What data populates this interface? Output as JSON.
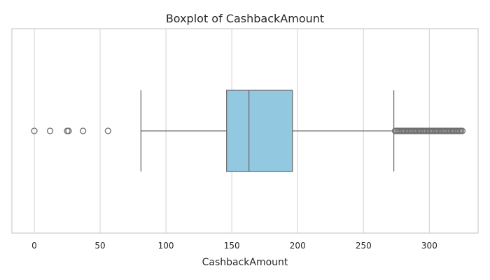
{
  "chart_data": {
    "type": "boxplot",
    "title": "Boxplot of CashbackAmount",
    "xlabel": "CashbackAmount",
    "ylabel": "",
    "xlim": [
      -17,
      337
    ],
    "xticks": [
      0,
      50,
      100,
      150,
      200,
      250,
      300
    ],
    "grid": true,
    "box": {
      "whisker_low": 81,
      "q1": 146,
      "median": 163,
      "q3": 196,
      "whisker_high": 273
    },
    "outliers": [
      0,
      12,
      25,
      26,
      37,
      56,
      274,
      275,
      276,
      277,
      278,
      279,
      280,
      281,
      282,
      283,
      284,
      285,
      286,
      287,
      288,
      289,
      290,
      291,
      292,
      293,
      294,
      295,
      296,
      297,
      298,
      299,
      300,
      301,
      302,
      303,
      304,
      305,
      306,
      307,
      308,
      309,
      310,
      311,
      312,
      313,
      314,
      315,
      316,
      317,
      318,
      319,
      320,
      321,
      322,
      323,
      324,
      325
    ],
    "colors": {
      "box_fill": "#92c8e0",
      "line": "#6e6e6e",
      "grid": "#d9d9d9",
      "frame": "#cccccc"
    }
  }
}
